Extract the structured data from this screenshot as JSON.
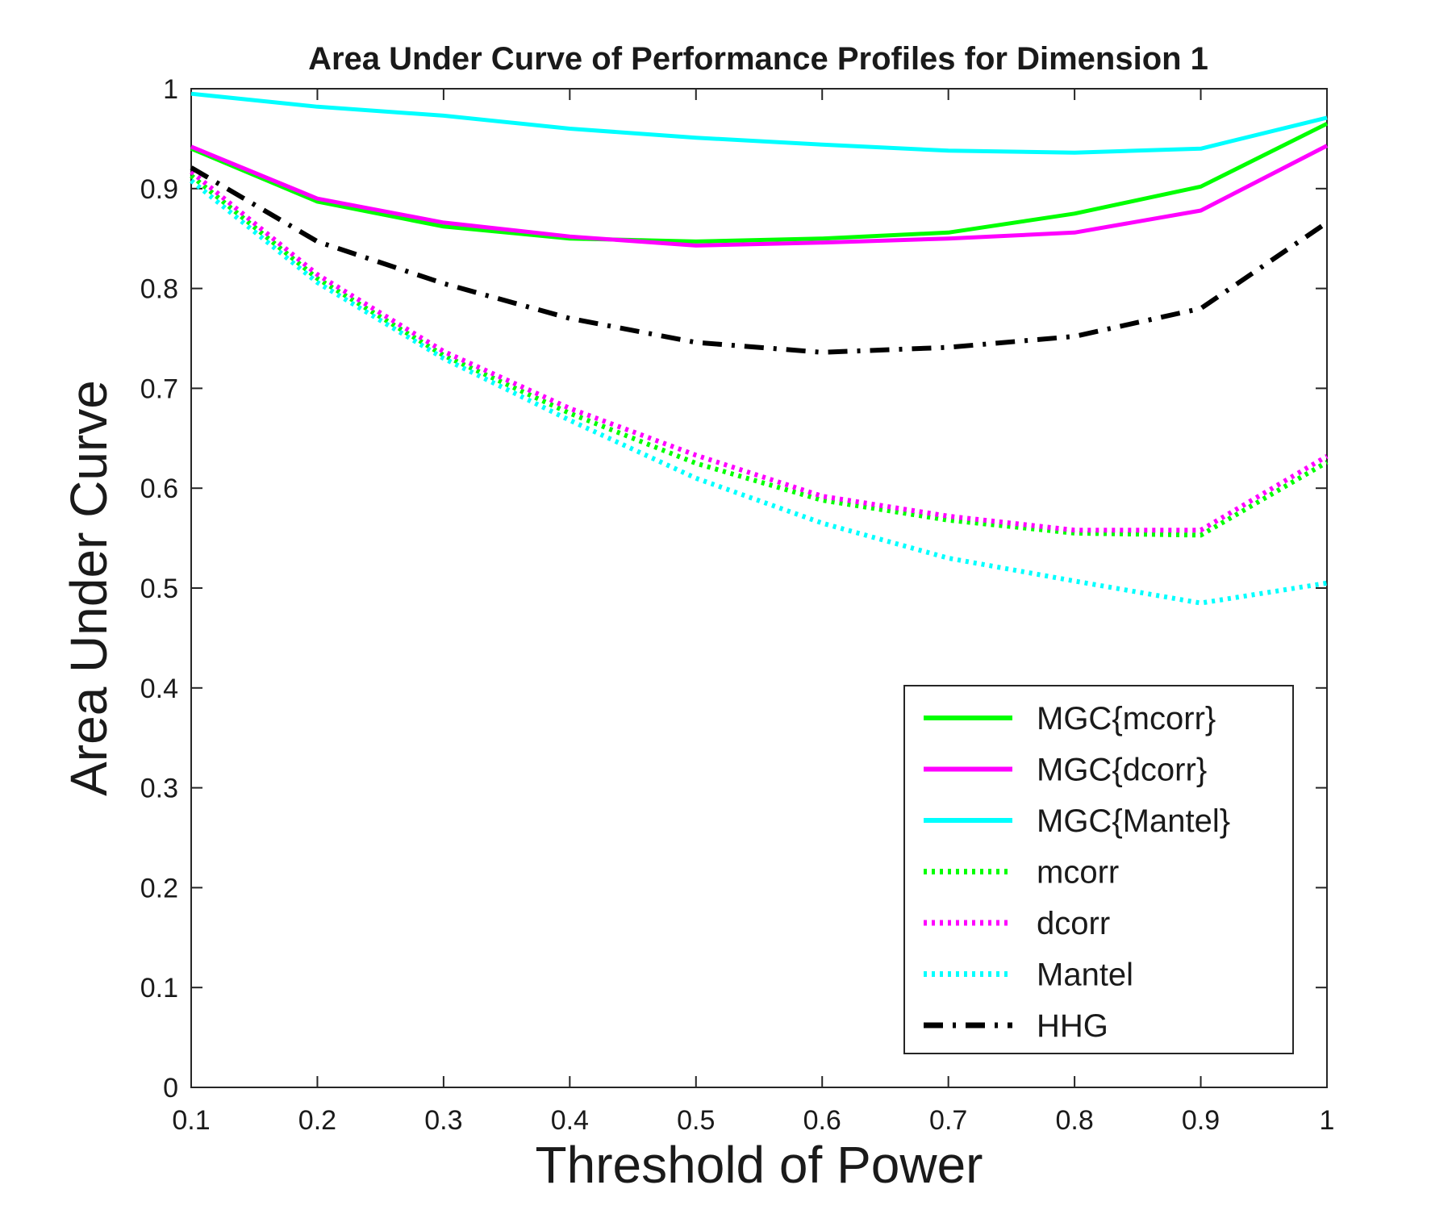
{
  "chart_data": {
    "type": "line",
    "title": "Area Under Curve of Performance Profiles for Dimension 1",
    "xlabel": "Threshold of Power",
    "ylabel": "Area Under Curve",
    "xlim": [
      0.1,
      1
    ],
    "ylim": [
      0,
      1
    ],
    "x_ticks": [
      "0.1",
      "0.2",
      "0.3",
      "0.4",
      "0.5",
      "0.6",
      "0.7",
      "0.8",
      "0.9",
      "1"
    ],
    "y_ticks": [
      "0",
      "0.1",
      "0.2",
      "0.3",
      "0.4",
      "0.5",
      "0.6",
      "0.7",
      "0.8",
      "0.9",
      "1"
    ],
    "grid": false,
    "legend_position": "bottom-right",
    "x": [
      0.1,
      0.2,
      0.3,
      0.4,
      0.5,
      0.6,
      0.7,
      0.8,
      0.9,
      1.0
    ],
    "series": [
      {
        "name": "MGC{mcorr}",
        "color": "#00ff00",
        "style": "solid",
        "values": [
          0.94,
          0.887,
          0.862,
          0.85,
          0.847,
          0.85,
          0.856,
          0.875,
          0.902,
          0.965
        ]
      },
      {
        "name": "MGC{dcorr}",
        "color": "#ff00ff",
        "style": "solid",
        "values": [
          0.942,
          0.89,
          0.866,
          0.852,
          0.843,
          0.846,
          0.85,
          0.856,
          0.878,
          0.943
        ]
      },
      {
        "name": "MGC{Mantel}",
        "color": "#00ffff",
        "style": "solid",
        "values": [
          0.995,
          0.982,
          0.973,
          0.96,
          0.951,
          0.944,
          0.938,
          0.936,
          0.94,
          0.971
        ]
      },
      {
        "name": "mcorr",
        "color": "#00ff00",
        "style": "dotted",
        "values": [
          0.913,
          0.81,
          0.733,
          0.675,
          0.625,
          0.588,
          0.568,
          0.555,
          0.553,
          0.626
        ]
      },
      {
        "name": "dcorr",
        "color": "#ff00ff",
        "style": "dotted",
        "values": [
          0.917,
          0.814,
          0.737,
          0.68,
          0.633,
          0.592,
          0.572,
          0.558,
          0.558,
          0.632
        ]
      },
      {
        "name": "Mantel",
        "color": "#00ffff",
        "style": "dotted",
        "values": [
          0.908,
          0.806,
          0.73,
          0.668,
          0.61,
          0.565,
          0.53,
          0.507,
          0.485,
          0.505
        ]
      },
      {
        "name": "HHG",
        "color": "#000000",
        "style": "dashdot",
        "values": [
          0.921,
          0.847,
          0.805,
          0.77,
          0.746,
          0.736,
          0.741,
          0.752,
          0.78,
          0.866
        ]
      }
    ]
  }
}
